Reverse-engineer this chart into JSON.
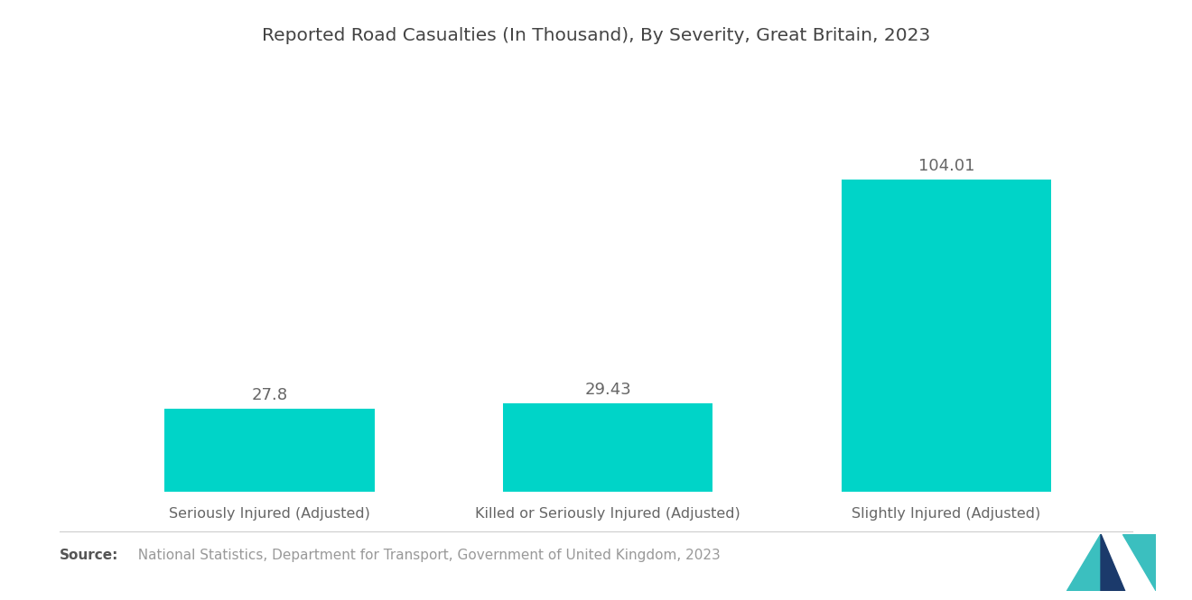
{
  "title": "Reported Road Casualties (In Thousand), By Severity, Great Britain, 2023",
  "categories": [
    "Seriously Injured (Adjusted)",
    "Killed or Seriously Injured (Adjusted)",
    "Slightly Injured (Adjusted)"
  ],
  "values": [
    27.8,
    29.43,
    104.01
  ],
  "bar_color": "#00D4C8",
  "label_values": [
    "27.8",
    "29.43",
    "104.01"
  ],
  "source_bold": "Source:",
  "source_text": "  National Statistics, Department for Transport, Government of United Kingdom, 2023",
  "background_color": "#ffffff",
  "title_fontsize": 14.5,
  "label_fontsize": 13,
  "category_fontsize": 11.5,
  "source_fontsize": 11,
  "ylim": [
    0,
    130
  ],
  "bar_width": 0.62,
  "xlim": [
    -0.55,
    2.55
  ],
  "logo_teal": "#3BBFBF",
  "logo_navy": "#1B3A6B"
}
